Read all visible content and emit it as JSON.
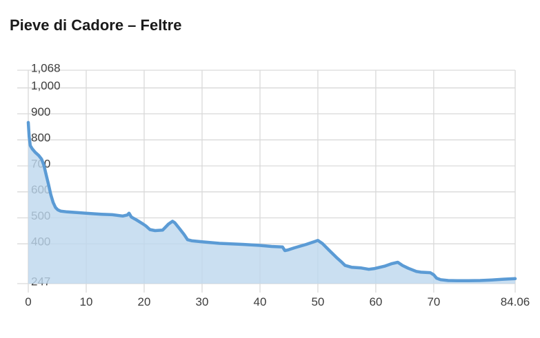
{
  "header": {
    "title": "Pieve di Cadore – Feltre"
  },
  "chart_data": {
    "type": "area",
    "title": "Pieve di Cadore – Feltre",
    "xlabel": "",
    "ylabel": "",
    "x_unit": "km",
    "y_unit": "m",
    "xlim": [
      0,
      84.06
    ],
    "ylim": [
      247,
      1068
    ],
    "grid": true,
    "legend": false,
    "x_ticks": [
      0,
      10,
      20,
      30,
      40,
      50,
      60,
      70,
      84.06
    ],
    "x_tick_labels": [
      "0",
      "10",
      "20",
      "30",
      "40",
      "50",
      "60",
      "70",
      "84.06"
    ],
    "y_ticks": [
      247,
      400,
      500,
      600,
      700,
      800,
      900,
      1000,
      1068
    ],
    "y_tick_labels": [
      "247",
      "400",
      "500",
      "600",
      "700",
      "800",
      "900",
      "1,000",
      "1,068"
    ],
    "colors": {
      "line": "#5b9bd5",
      "fill": "#bdd7ee",
      "fill_opacity": 0.8,
      "grid": "#d9d9d9",
      "tick_text": "#3d3d3d",
      "title_text": "#1a1a1a",
      "background": "#ffffff"
    },
    "series": [
      {
        "name": "elevation_m",
        "points": [
          [
            0,
            867
          ],
          [
            0.15,
            812
          ],
          [
            0.35,
            778
          ],
          [
            0.7,
            765
          ],
          [
            1.2,
            752
          ],
          [
            1.8,
            740
          ],
          [
            2.3,
            726
          ],
          [
            2.7,
            702
          ],
          [
            3.1,
            665
          ],
          [
            3.5,
            628
          ],
          [
            3.9,
            588
          ],
          [
            4.3,
            559
          ],
          [
            4.7,
            540
          ],
          [
            5.1,
            531
          ],
          [
            5.6,
            526
          ],
          [
            6.7,
            523
          ],
          [
            8.6,
            520
          ],
          [
            10.6,
            517
          ],
          [
            12.6,
            514
          ],
          [
            14.5,
            512
          ],
          [
            16.3,
            507
          ],
          [
            17.1,
            511
          ],
          [
            17.4,
            518
          ],
          [
            17.8,
            503
          ],
          [
            18.6,
            493
          ],
          [
            19.7,
            478
          ],
          [
            20.3,
            469
          ],
          [
            21,
            455
          ],
          [
            21.9,
            451
          ],
          [
            23.2,
            453
          ],
          [
            24.2,
            476
          ],
          [
            24.9,
            487
          ],
          [
            25.3,
            481
          ],
          [
            26.1,
            459
          ],
          [
            26.9,
            436
          ],
          [
            27.5,
            416
          ],
          [
            28.2,
            412
          ],
          [
            30,
            408
          ],
          [
            33,
            402
          ],
          [
            37,
            398
          ],
          [
            40,
            394
          ],
          [
            42,
            390
          ],
          [
            43.9,
            388
          ],
          [
            44.3,
            374
          ],
          [
            44.9,
            377
          ],
          [
            46,
            385
          ],
          [
            48,
            398
          ],
          [
            49.5,
            409
          ],
          [
            50,
            413
          ],
          [
            50.8,
            401
          ],
          [
            52,
            374
          ],
          [
            53.2,
            348
          ],
          [
            54,
            332
          ],
          [
            54.7,
            317
          ],
          [
            55.8,
            310
          ],
          [
            57.5,
            307
          ],
          [
            58.8,
            302
          ],
          [
            59.8,
            305
          ],
          [
            61.5,
            314
          ],
          [
            62.8,
            324
          ],
          [
            63.8,
            329
          ],
          [
            64.6,
            317
          ],
          [
            65.6,
            306
          ],
          [
            67,
            294
          ],
          [
            67.8,
            291
          ],
          [
            69.4,
            289
          ],
          [
            70,
            281
          ],
          [
            70.5,
            268
          ],
          [
            71.2,
            262
          ],
          [
            72.5,
            259
          ],
          [
            74,
            258
          ],
          [
            76,
            258
          ],
          [
            78,
            259
          ],
          [
            80,
            261
          ],
          [
            82,
            264
          ],
          [
            84.06,
            266
          ]
        ]
      }
    ]
  }
}
